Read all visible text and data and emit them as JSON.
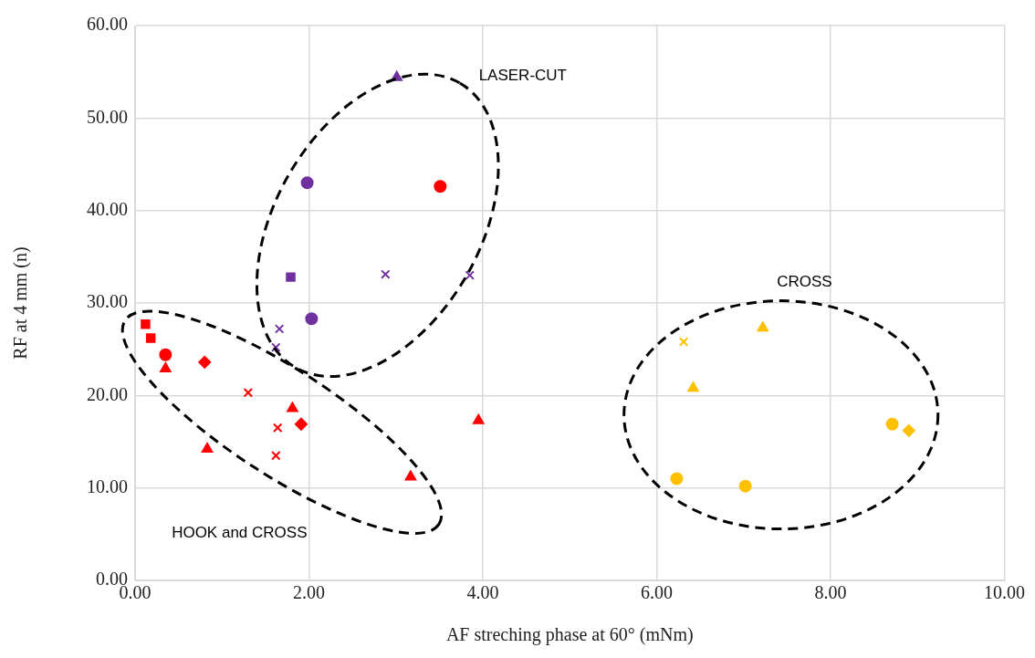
{
  "chart_data": {
    "type": "scatter",
    "xlabel": "AF streching phase at 60° (mNm)",
    "ylabel": "RF at 4 mm (n)",
    "xlim": [
      0,
      10
    ],
    "ylim": [
      0,
      60
    ],
    "xticks": [
      {
        "value": 0,
        "label": "0.00"
      },
      {
        "value": 2,
        "label": "2.00"
      },
      {
        "value": 4,
        "label": "4.00"
      },
      {
        "value": 6,
        "label": "6.00"
      },
      {
        "value": 8,
        "label": "8.00"
      },
      {
        "value": 10,
        "label": "10.00"
      }
    ],
    "yticks": [
      {
        "value": 0,
        "label": "0.00"
      },
      {
        "value": 10,
        "label": "10.00"
      },
      {
        "value": 20,
        "label": "20.00"
      },
      {
        "value": 30,
        "label": "30.00"
      },
      {
        "value": 40,
        "label": "40.00"
      },
      {
        "value": 50,
        "label": "50.00"
      },
      {
        "value": 60,
        "label": "60.00"
      }
    ],
    "grid": true,
    "legend": false,
    "annotations": [
      "LASER-CUT",
      "HOOK and CROSS",
      "CROSS"
    ],
    "series": [
      {
        "type": "scatter",
        "color": "#ff0000",
        "marker": "square",
        "x": [
          0.12
        ],
        "values": [
          27.7
        ]
      },
      {
        "type": "scatter",
        "color": "#ff0000",
        "marker": "square",
        "x": [
          0.18
        ],
        "values": [
          26.2
        ]
      },
      {
        "type": "scatter",
        "color": "#ff0000",
        "marker": "circle",
        "x": [
          0.35
        ],
        "values": [
          24.4
        ]
      },
      {
        "type": "scatter",
        "color": "#ff0000",
        "marker": "triangle",
        "x": [
          0.35
        ],
        "values": [
          22.9
        ]
      },
      {
        "type": "scatter",
        "color": "#ff0000",
        "marker": "diamond",
        "x": [
          0.8
        ],
        "values": [
          23.6
        ]
      },
      {
        "type": "scatter",
        "color": "#ff0000",
        "marker": "cross",
        "x": [
          1.3
        ],
        "values": [
          20.3
        ]
      },
      {
        "type": "scatter",
        "color": "#ff0000",
        "marker": "triangle",
        "x": [
          1.81
        ],
        "values": [
          18.6
        ]
      },
      {
        "type": "scatter",
        "color": "#ff0000",
        "marker": "cross",
        "x": [
          1.64
        ],
        "values": [
          16.5
        ]
      },
      {
        "type": "scatter",
        "color": "#ff0000",
        "marker": "diamond",
        "x": [
          1.91
        ],
        "values": [
          16.9
        ]
      },
      {
        "type": "scatter",
        "color": "#ff0000",
        "marker": "triangle",
        "x": [
          0.83
        ],
        "values": [
          14.2
        ]
      },
      {
        "type": "scatter",
        "color": "#ff0000",
        "marker": "cross",
        "x": [
          1.62
        ],
        "values": [
          13.5
        ]
      },
      {
        "type": "scatter",
        "color": "#ff0000",
        "marker": "triangle",
        "x": [
          3.17
        ],
        "values": [
          11.2
        ]
      },
      {
        "type": "scatter",
        "color": "#ff0000",
        "marker": "triangle",
        "x": [
          3.95
        ],
        "values": [
          17.3
        ]
      },
      {
        "type": "scatter",
        "color": "#ff0000",
        "marker": "circle",
        "x": [
          3.51
        ],
        "values": [
          42.6
        ]
      },
      {
        "type": "scatter",
        "color": "#7030a0",
        "marker": "triangle",
        "x": [
          3.01
        ],
        "values": [
          54.4
        ]
      },
      {
        "type": "scatter",
        "color": "#7030a0",
        "marker": "circle",
        "x": [
          1.98
        ],
        "values": [
          43.0
        ]
      },
      {
        "type": "scatter",
        "color": "#7030a0",
        "marker": "square",
        "x": [
          1.79
        ],
        "values": [
          32.8
        ]
      },
      {
        "type": "scatter",
        "color": "#7030a0",
        "marker": "cross",
        "x": [
          2.88
        ],
        "values": [
          33.1
        ]
      },
      {
        "type": "scatter",
        "color": "#7030a0",
        "marker": "cross",
        "x": [
          3.85
        ],
        "values": [
          33.0
        ]
      },
      {
        "type": "scatter",
        "color": "#7030a0",
        "marker": "circle",
        "x": [
          2.03
        ],
        "values": [
          28.3
        ]
      },
      {
        "type": "scatter",
        "color": "#7030a0",
        "marker": "cross",
        "x": [
          1.66
        ],
        "values": [
          27.2
        ]
      },
      {
        "type": "scatter",
        "color": "#7030a0",
        "marker": "cross",
        "x": [
          1.62
        ],
        "values": [
          25.2
        ]
      },
      {
        "type": "scatter",
        "color": "#ffc000",
        "marker": "cross",
        "x": [
          6.31
        ],
        "values": [
          25.8
        ]
      },
      {
        "type": "scatter",
        "color": "#ffc000",
        "marker": "triangle",
        "x": [
          7.22
        ],
        "values": [
          27.3
        ]
      },
      {
        "type": "scatter",
        "color": "#ffc000",
        "marker": "triangle",
        "x": [
          6.42
        ],
        "values": [
          20.8
        ]
      },
      {
        "type": "scatter",
        "color": "#ffc000",
        "marker": "circle",
        "x": [
          8.71
        ],
        "values": [
          16.9
        ]
      },
      {
        "type": "scatter",
        "color": "#ffc000",
        "marker": "diamond",
        "x": [
          8.9
        ],
        "values": [
          16.2
        ]
      },
      {
        "type": "scatter",
        "color": "#ffc000",
        "marker": "circle",
        "x": [
          6.23
        ],
        "values": [
          11.0
        ]
      },
      {
        "type": "scatter",
        "color": "#ffc000",
        "marker": "circle",
        "x": [
          7.02
        ],
        "values": [
          10.2
        ]
      }
    ]
  }
}
